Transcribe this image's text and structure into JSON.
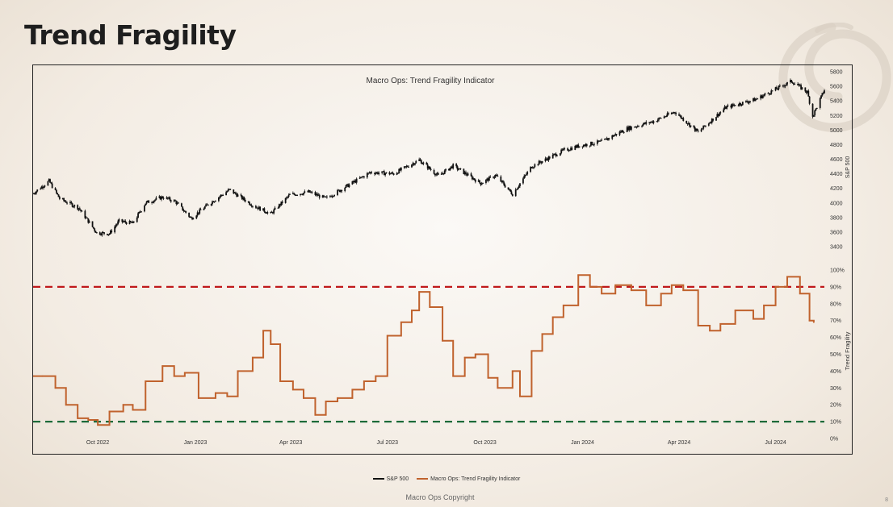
{
  "slide": {
    "title": "Trend Fragility",
    "page_number": "8",
    "copyright": "Macro Ops Copyright"
  },
  "colors": {
    "spx": "#111111",
    "fragility": "#c0622d",
    "upper_band": "#c0191b",
    "lower_band": "#1d6b3a"
  },
  "chart_data": {
    "type": "line",
    "title": "Macro Ops: Trend Fragility Indicator",
    "x_range": [
      "2022-08-01",
      "2024-08-16"
    ],
    "x_ticks": [
      {
        "label": "Oct 2022",
        "date": "2022-10-01"
      },
      {
        "label": "Jan 2023",
        "date": "2023-01-01"
      },
      {
        "label": "Apr 2023",
        "date": "2023-04-01"
      },
      {
        "label": "Jul 2023",
        "date": "2023-07-01"
      },
      {
        "label": "Oct 2023",
        "date": "2023-10-01"
      },
      {
        "label": "Jan 2024",
        "date": "2024-01-01"
      },
      {
        "label": "Apr 2024",
        "date": "2024-04-01"
      },
      {
        "label": "Jul 2024",
        "date": "2024-07-01"
      }
    ],
    "panels": [
      {
        "name": "spx",
        "ylabel": "S&P 500",
        "ylim": [
          3400,
          5800
        ],
        "y_ticks": [
          "3400",
          "3600",
          "3800",
          "4000",
          "4200",
          "4400",
          "4600",
          "4800",
          "5000",
          "5200",
          "5400",
          "5600",
          "5800"
        ],
        "y_tick_values": [
          3400,
          3600,
          3800,
          4000,
          4200,
          4400,
          4600,
          4800,
          5000,
          5200,
          5400,
          5600,
          5800
        ]
      },
      {
        "name": "fragility",
        "ylabel": "Trend Fragility",
        "ylim": [
          0,
          100
        ],
        "y_ticks": [
          "0%",
          "10%",
          "20%",
          "30%",
          "40%",
          "50%",
          "60%",
          "70%",
          "80%",
          "90%",
          "100%"
        ],
        "y_tick_values": [
          0,
          10,
          20,
          30,
          40,
          50,
          60,
          70,
          80,
          90,
          100
        ],
        "thresholds": [
          90,
          10
        ]
      }
    ],
    "series": [
      {
        "name": "S&P 500",
        "style": "candlestick",
        "points": [
          [
            "2022-08-01",
            4130
          ],
          [
            "2022-08-16",
            4300
          ],
          [
            "2022-08-26",
            4060
          ],
          [
            "2022-09-13",
            3930
          ],
          [
            "2022-09-30",
            3590
          ],
          [
            "2022-10-12",
            3580
          ],
          [
            "2022-10-21",
            3750
          ],
          [
            "2022-11-03",
            3720
          ],
          [
            "2022-11-15",
            4000
          ],
          [
            "2022-12-01",
            4080
          ],
          [
            "2022-12-13",
            4020
          ],
          [
            "2022-12-28",
            3790
          ],
          [
            "2023-01-13",
            3980
          ],
          [
            "2023-02-02",
            4180
          ],
          [
            "2023-02-24",
            3970
          ],
          [
            "2023-03-13",
            3850
          ],
          [
            "2023-03-31",
            4110
          ],
          [
            "2023-04-18",
            4150
          ],
          [
            "2023-05-04",
            4060
          ],
          [
            "2023-05-19",
            4190
          ],
          [
            "2023-06-15",
            4420
          ],
          [
            "2023-07-07",
            4400
          ],
          [
            "2023-07-31",
            4590
          ],
          [
            "2023-08-18",
            4370
          ],
          [
            "2023-09-01",
            4510
          ],
          [
            "2023-09-27",
            4270
          ],
          [
            "2023-10-11",
            4380
          ],
          [
            "2023-10-27",
            4120
          ],
          [
            "2023-11-14",
            4500
          ],
          [
            "2023-12-14",
            4720
          ],
          [
            "2023-12-28",
            4780
          ],
          [
            "2024-01-19",
            4840
          ],
          [
            "2024-02-12",
            5020
          ],
          [
            "2024-03-08",
            5120
          ],
          [
            "2024-03-28",
            5250
          ],
          [
            "2024-04-19",
            4970
          ],
          [
            "2024-05-15",
            5310
          ],
          [
            "2024-06-12",
            5420
          ],
          [
            "2024-07-16",
            5670
          ],
          [
            "2024-07-31",
            5520
          ],
          [
            "2024-08-05",
            5190
          ],
          [
            "2024-08-16",
            5550
          ]
        ]
      },
      {
        "name": "Macro Ops: Trend Fragility Indicator",
        "style": "line",
        "points": [
          [
            "2022-08-01",
            37
          ],
          [
            "2022-08-10",
            37
          ],
          [
            "2022-08-22",
            30
          ],
          [
            "2022-09-01",
            20
          ],
          [
            "2022-09-12",
            12
          ],
          [
            "2022-09-22",
            11
          ],
          [
            "2022-10-01",
            8
          ],
          [
            "2022-10-12",
            16
          ],
          [
            "2022-10-25",
            20
          ],
          [
            "2022-11-03",
            17
          ],
          [
            "2022-11-15",
            34
          ],
          [
            "2022-12-01",
            43
          ],
          [
            "2022-12-12",
            37
          ],
          [
            "2022-12-22",
            39
          ],
          [
            "2023-01-04",
            24
          ],
          [
            "2023-01-20",
            27
          ],
          [
            "2023-01-31",
            25
          ],
          [
            "2023-02-10",
            40
          ],
          [
            "2023-02-24",
            48
          ],
          [
            "2023-03-06",
            64
          ],
          [
            "2023-03-13",
            56
          ],
          [
            "2023-03-22",
            34
          ],
          [
            "2023-04-03",
            29
          ],
          [
            "2023-04-13",
            24
          ],
          [
            "2023-04-24",
            14
          ],
          [
            "2023-05-04",
            22
          ],
          [
            "2023-05-15",
            24
          ],
          [
            "2023-05-29",
            29
          ],
          [
            "2023-06-09",
            34
          ],
          [
            "2023-06-20",
            37
          ],
          [
            "2023-07-01",
            61
          ],
          [
            "2023-07-14",
            69
          ],
          [
            "2023-07-24",
            76
          ],
          [
            "2023-07-31",
            87
          ],
          [
            "2023-08-10",
            78
          ],
          [
            "2023-08-22",
            58
          ],
          [
            "2023-09-01",
            37
          ],
          [
            "2023-09-12",
            48
          ],
          [
            "2023-09-22",
            50
          ],
          [
            "2023-10-04",
            36
          ],
          [
            "2023-10-13",
            30
          ],
          [
            "2023-10-27",
            40
          ],
          [
            "2023-11-03",
            25
          ],
          [
            "2023-11-14",
            52
          ],
          [
            "2023-11-24",
            62
          ],
          [
            "2023-12-04",
            72
          ],
          [
            "2023-12-14",
            79
          ],
          [
            "2023-12-28",
            97
          ],
          [
            "2024-01-08",
            90
          ],
          [
            "2024-01-19",
            86
          ],
          [
            "2024-02-01",
            91
          ],
          [
            "2024-02-16",
            88
          ],
          [
            "2024-03-01",
            79
          ],
          [
            "2024-03-15",
            86
          ],
          [
            "2024-03-25",
            91
          ],
          [
            "2024-04-05",
            88
          ],
          [
            "2024-04-19",
            67
          ],
          [
            "2024-04-30",
            64
          ],
          [
            "2024-05-10",
            68
          ],
          [
            "2024-05-24",
            76
          ],
          [
            "2024-06-10",
            71
          ],
          [
            "2024-06-20",
            79
          ],
          [
            "2024-07-01",
            90
          ],
          [
            "2024-07-12",
            96
          ],
          [
            "2024-07-24",
            86
          ],
          [
            "2024-08-02",
            70
          ],
          [
            "2024-08-06",
            69
          ]
        ]
      }
    ],
    "legend": [
      "S&P 500",
      "Macro Ops: Trend Fragility Indicator"
    ]
  }
}
